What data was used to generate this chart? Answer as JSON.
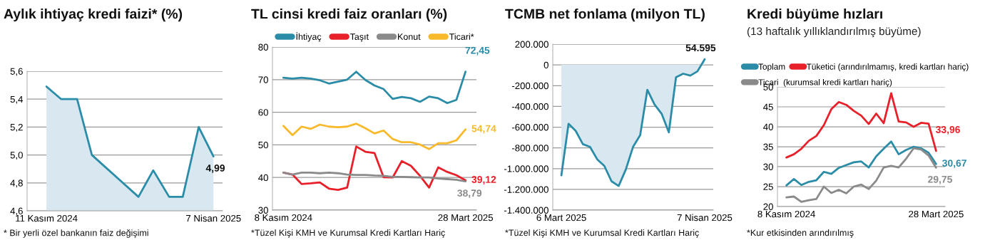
{
  "chart_data": [
    {
      "type": "area",
      "title": "Aylık ihtiyaç kredi faizi* (%)",
      "x": [
        "2024-11-11",
        "2024-11-24",
        "2024-12-08",
        "2024-12-21",
        "2025-01-31",
        "2025-02-13",
        "2025-02-27",
        "2025-03-11",
        "2025-03-25",
        "2025-04-07"
      ],
      "series": [
        {
          "color": "#2b8ca8",
          "values": [
            5.49,
            5.4,
            5.4,
            5.0,
            4.7,
            4.89,
            4.7,
            4.7,
            5.2,
            4.99
          ],
          "value_labels": [
            null,
            null,
            null,
            null,
            null,
            null,
            null,
            null,
            null,
            "4,99"
          ]
        }
      ],
      "xlim": [
        "2024-10-25",
        "2025-04-15"
      ],
      "xticks": [
        {
          "value": "2024-11-11",
          "label": "11 Kasım 2024"
        },
        {
          "value": "2025-04-07",
          "label": "7 Nisan 2025"
        }
      ],
      "ylim": [
        4.6,
        5.6
      ],
      "yticks": [
        {
          "value": 4.6,
          "label": "4,6"
        },
        {
          "value": 4.8,
          "label": "4,8"
        },
        {
          "value": 5.0,
          "label": "5,0"
        },
        {
          "value": 5.2,
          "label": "5,2"
        },
        {
          "value": 5.4,
          "label": "5,4"
        },
        {
          "value": 5.6,
          "label": "5,6"
        }
      ],
      "grid": "y",
      "annotations": [
        "* Bir yerli özel bankanın faiz değişimi"
      ]
    },
    {
      "type": "line",
      "title": "TL cinsi kredi faiz oranları (%)",
      "categories": [
        "8 Kasım 2024",
        null,
        null,
        null,
        null,
        null,
        null,
        null,
        null,
        null,
        null,
        null,
        null,
        null,
        null,
        null,
        null,
        null,
        null,
        null,
        "28 Mart 2025"
      ],
      "series": [
        {
          "name": "İhtiyaç",
          "color": "#2b8ca8",
          "values": [
            70.6,
            70.3,
            70.6,
            70.3,
            69.8,
            68.8,
            69.4,
            70.0,
            72.4,
            69.9,
            68.2,
            67.1,
            64.1,
            64.7,
            64.3,
            63.2,
            64.8,
            64.3,
            62.8,
            63.8,
            72.45
          ],
          "value_labels": [
            null,
            null,
            null,
            null,
            null,
            null,
            null,
            null,
            null,
            null,
            null,
            null,
            null,
            null,
            null,
            null,
            null,
            null,
            null,
            null,
            "72,45"
          ]
        },
        {
          "name": "Taşıt",
          "color": "#e8202a",
          "values": [
            41.5,
            40.9,
            38.0,
            38.2,
            38.5,
            36.6,
            36.2,
            36.9,
            49.5,
            47.9,
            47.5,
            40.1,
            40.0,
            45.0,
            43.6,
            40.5,
            36.9,
            43.1,
            41.7,
            40.7,
            39.12
          ],
          "value_labels": [
            null,
            null,
            null,
            null,
            null,
            null,
            null,
            null,
            null,
            null,
            null,
            null,
            null,
            null,
            null,
            null,
            null,
            null,
            null,
            null,
            "39,12"
          ]
        },
        {
          "name": "Konut",
          "color": "#8a8a8a",
          "values": [
            41.5,
            40.9,
            41.5,
            41.5,
            41.3,
            41.5,
            41.3,
            40.9,
            40.8,
            40.8,
            40.6,
            40.5,
            40.2,
            40.2,
            40.1,
            40.0,
            40.0,
            39.7,
            39.5,
            39.3,
            38.79
          ],
          "value_labels": [
            null,
            null,
            null,
            null,
            null,
            null,
            null,
            null,
            null,
            null,
            null,
            null,
            null,
            null,
            null,
            null,
            null,
            null,
            null,
            null,
            "38,79"
          ]
        },
        {
          "name": "Ticari*",
          "color": "#f8b92a",
          "values": [
            55.8,
            53.0,
            55.6,
            54.9,
            56.2,
            55.6,
            55.4,
            55.6,
            56.5,
            55.1,
            53.5,
            54.4,
            51.8,
            50.8,
            50.8,
            50.1,
            48.7,
            50.5,
            50.5,
            51.4,
            54.74
          ],
          "value_labels": [
            null,
            null,
            null,
            null,
            null,
            null,
            null,
            null,
            null,
            null,
            null,
            null,
            null,
            null,
            null,
            null,
            null,
            null,
            null,
            null,
            "54,74"
          ]
        }
      ],
      "ylim": [
        30,
        80
      ],
      "yticks": [
        30,
        40,
        50,
        60,
        70,
        80
      ],
      "grid": "y",
      "legend": "top",
      "annotations": [
        "*Tüzel Kişi KMH ve Kurumsal Kredi Kartları Hariç"
      ]
    },
    {
      "type": "area",
      "title": "TCMB net fonlama (milyon TL)",
      "categories": [
        "6 Mart 2025",
        null,
        null,
        null,
        null,
        null,
        null,
        null,
        null,
        null,
        null,
        null,
        null,
        null,
        null,
        null,
        null,
        null,
        null,
        null,
        "7 Nisan 2025"
      ],
      "series": [
        {
          "color": "#2b8ca8",
          "values": [
            -1065000,
            -568000,
            -636000,
            -764000,
            -791000,
            -910000,
            -974000,
            -1122000,
            -1167000,
            -1008000,
            -791000,
            -677000,
            -240000,
            -381000,
            -472000,
            -650000,
            -119000,
            -85000,
            -103000,
            -62000,
            54595
          ],
          "value_labels": [
            null,
            null,
            null,
            null,
            null,
            null,
            null,
            null,
            null,
            null,
            null,
            null,
            null,
            null,
            null,
            null,
            null,
            null,
            null,
            null,
            "54.595"
          ]
        }
      ],
      "ylim": [
        -1400000,
        200000
      ],
      "yticks": [
        {
          "value": -1400000,
          "label": "-1.400.000"
        },
        {
          "value": -1200000,
          "label": "-1.200.000"
        },
        {
          "value": -1000000,
          "label": "-1.000.000"
        },
        {
          "value": -800000,
          "label": "-800.000"
        },
        {
          "value": -600000,
          "label": "-600.000"
        },
        {
          "value": -400000,
          "label": "-400.000"
        },
        {
          "value": -200000,
          "label": "-200.000"
        },
        {
          "value": 0,
          "label": "0"
        },
        {
          "value": 200000,
          "label": "200.000"
        }
      ],
      "grid": "y",
      "annotations": [
        "*Tüzel Kişi KMH ve Kurumsal Kredi Kartları Hariç"
      ]
    },
    {
      "type": "line",
      "title": "Kredi büyüme hızları",
      "subtitle": "(13 haftalık yıllıklandırılmış büyüme)",
      "categories": [
        "8 Kasım 2024",
        null,
        null,
        null,
        null,
        null,
        null,
        null,
        null,
        null,
        null,
        null,
        null,
        null,
        null,
        null,
        null,
        null,
        null,
        null,
        "28 Mart 2025"
      ],
      "series": [
        {
          "name": "Toplam",
          "color": "#2b8ca8",
          "values": [
            25.3,
            26.9,
            25.4,
            26.2,
            26.6,
            28.7,
            28.2,
            29.7,
            30.4,
            31.1,
            31.3,
            29.8,
            32.6,
            34.5,
            36.3,
            33.1,
            34.2,
            35.0,
            34.6,
            33.5,
            30.67
          ],
          "value_labels": [
            null,
            null,
            null,
            null,
            null,
            null,
            null,
            null,
            null,
            null,
            null,
            null,
            null,
            null,
            null,
            null,
            null,
            null,
            null,
            null,
            "30,67"
          ]
        },
        {
          "name": "Tüketici (arındırılmamış, kredi kartları hariç)",
          "color": "#e8202a",
          "values": [
            32.3,
            33.1,
            34.5,
            36.5,
            37.7,
            40.4,
            44.4,
            46.2,
            45.5,
            44.0,
            42.8,
            40.7,
            43.3,
            40.9,
            48.4,
            41.3,
            41.1,
            40.0,
            41.0,
            40.8,
            33.96
          ],
          "value_labels": [
            null,
            null,
            null,
            null,
            null,
            null,
            null,
            null,
            null,
            null,
            null,
            null,
            null,
            null,
            null,
            null,
            null,
            null,
            null,
            null,
            "33,96"
          ]
        },
        {
          "name": "Ticari  (kurumsal kredi kartları hariç)",
          "color": "#8a8a8a",
          "values": [
            22.3,
            22.5,
            21.2,
            21.6,
            21.9,
            25.0,
            23.4,
            24.2,
            23.3,
            25.0,
            25.5,
            24.4,
            26.5,
            29.8,
            30.2,
            29.8,
            32.0,
            34.6,
            34.3,
            32.8,
            29.75
          ],
          "value_labels": [
            null,
            null,
            null,
            null,
            null,
            null,
            null,
            null,
            null,
            null,
            null,
            null,
            null,
            null,
            null,
            null,
            null,
            null,
            null,
            null,
            "29,75"
          ]
        }
      ],
      "ylim": [
        20,
        50
      ],
      "yticks": [
        20,
        25,
        30,
        35,
        40,
        45,
        50
      ],
      "grid": "y",
      "legend": "top",
      "annotations": [
        "*Kur etkisinden arındırılmış"
      ]
    }
  ]
}
